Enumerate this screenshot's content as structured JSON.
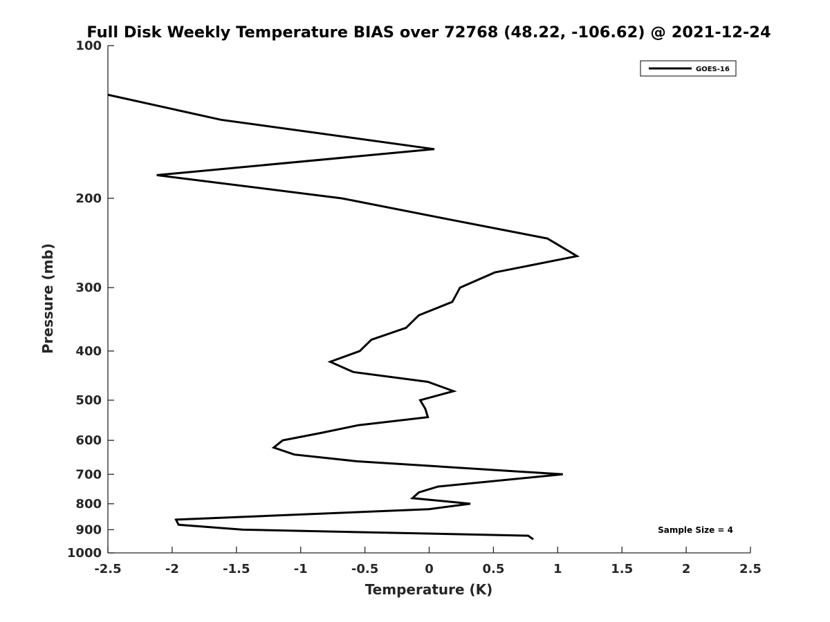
{
  "chart_data": {
    "type": "line",
    "title": "Full Disk Weekly Temperature BIAS over 72768 (48.22, -106.62) @ 2021-12-24",
    "xlabel": "Temperature (K)",
    "ylabel": "Pressure (mb)",
    "xlim": [
      -2.5,
      2.5
    ],
    "ylim": [
      100,
      1000
    ],
    "y_scale": "log",
    "y_reversed": true,
    "x_ticks": [
      -2.5,
      -2,
      -1.5,
      -1,
      -0.5,
      0,
      0.5,
      1,
      1.5,
      2,
      2.5
    ],
    "x_tick_labels": [
      "-2.5",
      "-2",
      "-1.5",
      "-1",
      "-0.5",
      "0",
      "0.5",
      "1",
      "1.5",
      "2",
      "2.5"
    ],
    "y_ticks": [
      100,
      200,
      300,
      400,
      500,
      600,
      700,
      800,
      900,
      1000
    ],
    "y_tick_labels": [
      "100",
      "200",
      "300",
      "400",
      "500",
      "600",
      "700",
      "800",
      "900",
      "1000"
    ],
    "grid": false,
    "legend_position": "top-right",
    "annotation": "Sample Size = 4",
    "colors": {
      "line": "#000000",
      "axis": "#262626"
    },
    "series": [
      {
        "name": "GOES-16",
        "points": [
          {
            "x": -2.5,
            "y": 125
          },
          {
            "x": -1.62,
            "y": 140
          },
          {
            "x": 0.04,
            "y": 160
          },
          {
            "x": -2.12,
            "y": 180
          },
          {
            "x": -0.68,
            "y": 200
          },
          {
            "x": 0.15,
            "y": 220
          },
          {
            "x": 0.92,
            "y": 240
          },
          {
            "x": 1.15,
            "y": 260
          },
          {
            "x": 0.51,
            "y": 280
          },
          {
            "x": 0.24,
            "y": 300
          },
          {
            "x": 0.18,
            "y": 320
          },
          {
            "x": -0.08,
            "y": 340
          },
          {
            "x": -0.18,
            "y": 360
          },
          {
            "x": -0.45,
            "y": 380
          },
          {
            "x": -0.54,
            "y": 400
          },
          {
            "x": -0.77,
            "y": 420
          },
          {
            "x": -0.59,
            "y": 440
          },
          {
            "x": -0.01,
            "y": 460
          },
          {
            "x": 0.19,
            "y": 480
          },
          {
            "x": -0.07,
            "y": 500
          },
          {
            "x": -0.03,
            "y": 520
          },
          {
            "x": -0.01,
            "y": 540
          },
          {
            "x": -0.55,
            "y": 560
          },
          {
            "x": -0.84,
            "y": 580
          },
          {
            "x": -1.14,
            "y": 600
          },
          {
            "x": -1.21,
            "y": 620
          },
          {
            "x": -1.05,
            "y": 640
          },
          {
            "x": -0.56,
            "y": 660
          },
          {
            "x": 1.04,
            "y": 700
          },
          {
            "x": 0.07,
            "y": 740
          },
          {
            "x": -0.08,
            "y": 760
          },
          {
            "x": -0.13,
            "y": 780
          },
          {
            "x": 0.32,
            "y": 800
          },
          {
            "x": 0.0,
            "y": 820
          },
          {
            "x": -1.97,
            "y": 860
          },
          {
            "x": -1.95,
            "y": 880
          },
          {
            "x": -1.45,
            "y": 900
          },
          {
            "x": 0.77,
            "y": 925
          },
          {
            "x": 0.81,
            "y": 940
          }
        ]
      }
    ]
  }
}
